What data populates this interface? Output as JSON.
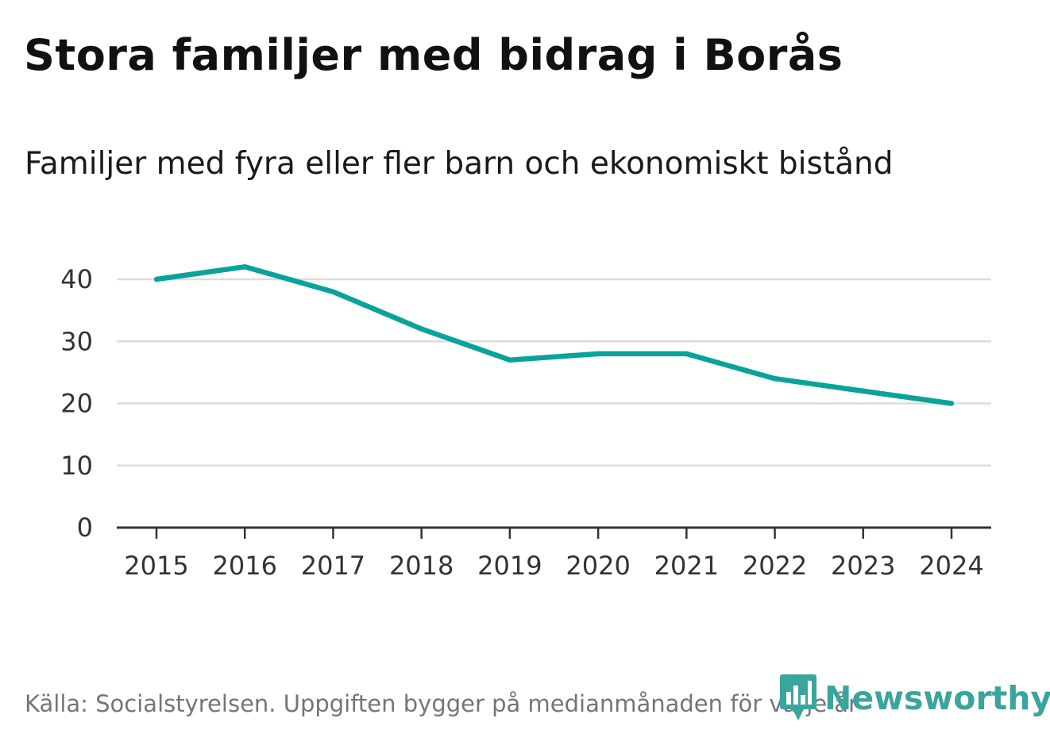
{
  "chart_data": {
    "type": "line",
    "title": "Stora familjer med bidrag i Borås",
    "subtitle": "Familjer med fyra eller fler barn och ekonomiskt bistånd",
    "x": [
      "2015",
      "2016",
      "2017",
      "2018",
      "2019",
      "2020",
      "2021",
      "2022",
      "2023",
      "2024"
    ],
    "series": [
      {
        "name": "Familjer med fyra eller fler barn och ekonomiskt bistånd",
        "values": [
          40,
          42,
          38,
          32,
          27,
          28,
          28,
          24,
          22,
          20
        ],
        "color": "#0aa39b"
      }
    ],
    "yticks": [
      0,
      10,
      20,
      30,
      40
    ],
    "ylim": [
      0,
      40
    ],
    "xlabel": "",
    "ylabel": "",
    "grid": true,
    "gridColor": "#dcdcdc",
    "axisColor": "#333333"
  },
  "footer": {
    "source": "Källa: Socialstyrelsen. Uppgiften bygger på medianmånaden för varje år",
    "brand": "Newsworthy",
    "brandColor": "#3aa59c",
    "brandIcon": "newsworthy-logo-icon"
  }
}
